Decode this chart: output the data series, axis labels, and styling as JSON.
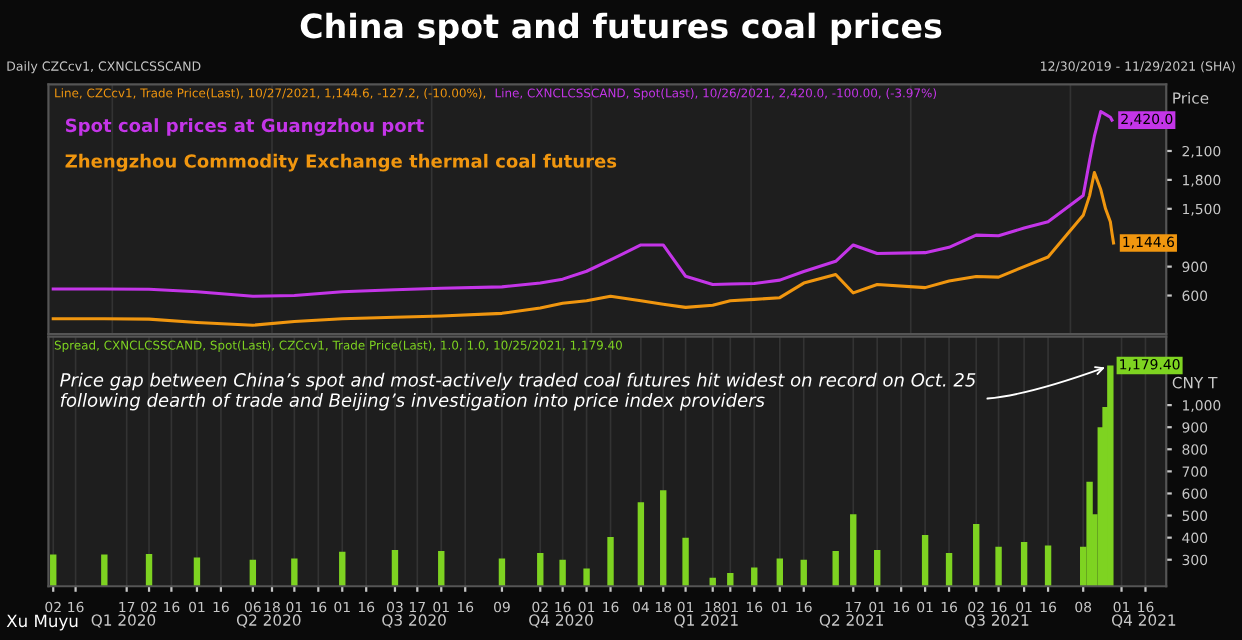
{
  "chart_data": [
    {
      "type": "line",
      "title": "China spot and futures coal prices",
      "ylabel": "Price",
      "x": [
        "2020-01-02",
        "2020-02-03",
        "2020-03-02",
        "2020-04-01",
        "2020-05-06",
        "2020-06-01",
        "2020-07-01",
        "2020-08-03",
        "2020-09-01",
        "2020-10-09",
        "2020-11-02",
        "2020-11-16",
        "2020-12-01",
        "2020-12-16",
        "2021-01-04",
        "2021-01-18",
        "2021-02-01",
        "2021-02-18",
        "2021-03-01",
        "2021-03-16",
        "2021-04-01",
        "2021-04-16",
        "2021-05-06",
        "2021-05-17",
        "2021-06-01",
        "2021-07-01",
        "2021-07-16",
        "2021-08-02",
        "2021-08-16",
        "2021-09-01",
        "2021-09-16",
        "2021-10-08",
        "2021-10-12",
        "2021-10-15",
        "2021-10-19",
        "2021-10-22",
        "2021-10-25",
        "2021-10-26",
        "2021-10-27"
      ],
      "series": [
        {
          "name": "Spot coal prices at Guangzhou port",
          "color": "#c435e8",
          "values": [
            668,
            668,
            665,
            640,
            592,
            600,
            640,
            660,
            675,
            690,
            729,
            770,
            852,
            969,
            1125,
            1125,
            800,
            715,
            720,
            725,
            760,
            850,
            955,
            1125,
            1036,
            1045,
            1100,
            1227,
            1220,
            1300,
            1365,
            1637,
            2000,
            2253,
            2510,
            2480,
            2450,
            2420,
            null
          ],
          "value_labels": [
            null,
            null,
            null,
            null,
            null,
            null,
            null,
            null,
            null,
            null,
            null,
            null,
            null,
            null,
            null,
            null,
            null,
            null,
            null,
            null,
            null,
            null,
            null,
            null,
            null,
            null,
            null,
            null,
            null,
            null,
            null,
            null,
            null,
            null,
            null,
            null,
            null,
            "2,420.0",
            null
          ]
        },
        {
          "name": "Zhengzhou Commodity Exchange thermal coal futures",
          "color": "#f0960f",
          "values": [
            360,
            360,
            355,
            320,
            292,
            330,
            360,
            375,
            387,
            415,
            470,
            520,
            545,
            592,
            545,
            510,
            477,
            500,
            545,
            560,
            578,
            729,
            818,
            627,
            715,
            682,
            750,
            797,
            791,
            900,
            1000,
            1432,
            1637,
            1877,
            1700,
            1500,
            1365,
            1250,
            1144.6
          ],
          "value_labels": [
            null,
            null,
            null,
            null,
            null,
            null,
            null,
            null,
            null,
            null,
            null,
            null,
            null,
            null,
            null,
            null,
            null,
            null,
            null,
            null,
            null,
            null,
            null,
            null,
            null,
            null,
            null,
            null,
            null,
            null,
            null,
            null,
            null,
            null,
            null,
            null,
            null,
            null,
            "1,144.6"
          ]
        }
      ],
      "xlim": [
        "2019-12-30",
        "2021-11-29"
      ],
      "ylim": [
        200,
        2790
      ],
      "yticks": [
        600,
        900,
        {
          "value": 1500,
          "label": "1,500"
        },
        {
          "value": 1800,
          "label": "1,800"
        },
        {
          "value": 2100,
          "label": "2,100"
        }
      ],
      "tick_labels": "y",
      "grid": "x",
      "legend": "top left",
      "marker": "none",
      "line_style": "solid",
      "annotations": [
        "Daily CZCcv1, CXNCLCSSCAND",
        "12/30/2019 - 11/29/2021 (SHA)",
        "Line, CZCcv1, Trade Price(Last), 10/27/2021, 1,144.6, -127.2, (-10.00%),",
        "Line, CXNCLCSSCAND, Spot(Last), 10/26/2021, 2,420.0, -100.00, (-3.97%)"
      ]
    },
    {
      "type": "bar",
      "ylabel": "CNY T",
      "x": [
        "2020-01-02",
        "2020-02-03",
        "2020-03-02",
        "2020-04-01",
        "2020-05-06",
        "2020-06-01",
        "2020-07-01",
        "2020-08-03",
        "2020-09-01",
        "2020-10-09",
        "2020-11-02",
        "2020-11-16",
        "2020-12-01",
        "2020-12-16",
        "2021-01-04",
        "2021-01-18",
        "2021-02-01",
        "2021-02-18",
        "2021-03-01",
        "2021-03-16",
        "2021-04-01",
        "2021-04-16",
        "2021-05-06",
        "2021-05-17",
        "2021-06-01",
        "2021-07-01",
        "2021-07-16",
        "2021-08-02",
        "2021-08-16",
        "2021-09-01",
        "2021-09-16",
        "2021-10-08",
        "2021-10-12",
        "2021-10-15",
        "2021-10-19",
        "2021-10-22",
        "2021-10-25"
      ],
      "series": [
        {
          "color": "#7ed321",
          "values": [
            324,
            324,
            326,
            310,
            300,
            306,
            336,
            344,
            340,
            306,
            330,
            300,
            260,
            403,
            560,
            615,
            400,
            218,
            240,
            265,
            306,
            300,
            340,
            506,
            344,
            412,
            330,
            462,
            359,
            380,
            364,
            359,
            653,
            506,
            900,
            991,
            1179.4
          ],
          "value_labels": [
            null,
            null,
            null,
            null,
            null,
            null,
            null,
            null,
            null,
            null,
            null,
            null,
            null,
            null,
            null,
            null,
            null,
            null,
            null,
            null,
            null,
            null,
            null,
            null,
            null,
            null,
            null,
            null,
            null,
            null,
            null,
            null,
            null,
            null,
            null,
            null,
            "1,179.40"
          ]
        }
      ],
      "xlim": [
        "2019-12-30",
        "2021-11-29"
      ],
      "ylim": [
        180,
        1310
      ],
      "xticks": [
        {
          "value": "2020-01-02",
          "label": "02"
        },
        {
          "value": "2020-01-16",
          "label": "16"
        },
        {
          "value": "2020-02-17",
          "label": "17"
        },
        {
          "value": "2020-03-02",
          "label": "02"
        },
        {
          "value": "2020-03-16",
          "label": "16"
        },
        {
          "value": "2020-04-01",
          "label": "01"
        },
        {
          "value": "2020-04-16",
          "label": "16"
        },
        {
          "value": "2020-05-06",
          "label": "06"
        },
        {
          "value": "2020-05-18",
          "label": "18"
        },
        {
          "value": "2020-06-01",
          "label": "01"
        },
        {
          "value": "2020-06-16",
          "label": "16"
        },
        {
          "value": "2020-07-01",
          "label": "01"
        },
        {
          "value": "2020-07-16",
          "label": "16"
        },
        {
          "value": "2020-08-03",
          "label": "03"
        },
        {
          "value": "2020-08-17",
          "label": "17"
        },
        {
          "value": "2020-09-01",
          "label": "01"
        },
        {
          "value": "2020-09-16",
          "label": "16"
        },
        {
          "value": "2020-10-09",
          "label": "09"
        },
        {
          "value": "2020-11-02",
          "label": "02"
        },
        {
          "value": "2020-11-16",
          "label": "16"
        },
        {
          "value": "2020-12-01",
          "label": "01"
        },
        {
          "value": "2020-12-16",
          "label": "16"
        },
        {
          "value": "2021-01-04",
          "label": "04"
        },
        {
          "value": "2021-01-18",
          "label": "18"
        },
        {
          "value": "2021-02-01",
          "label": "01"
        },
        {
          "value": "2021-02-18",
          "label": "18"
        },
        {
          "value": "2021-03-01",
          "label": "01"
        },
        {
          "value": "2021-03-16",
          "label": "16"
        },
        {
          "value": "2021-04-01",
          "label": "01"
        },
        {
          "value": "2021-04-16",
          "label": "16"
        },
        {
          "value": "2021-05-17",
          "label": "17"
        },
        {
          "value": "2021-06-01",
          "label": "01"
        },
        {
          "value": "2021-06-16",
          "label": "16"
        },
        {
          "value": "2021-07-01",
          "label": "01"
        },
        {
          "value": "2021-07-16",
          "label": "16"
        },
        {
          "value": "2021-08-02",
          "label": "02"
        },
        {
          "value": "2021-08-16",
          "label": "16"
        },
        {
          "value": "2021-09-01",
          "label": "01"
        },
        {
          "value": "2021-09-16",
          "label": "16"
        },
        {
          "value": "2021-10-08",
          "label": "08"
        },
        {
          "value": "2021-11-01",
          "label": "01"
        },
        {
          "value": "2021-11-16",
          "label": "16"
        }
      ],
      "x2ticks": [
        {
          "value": "2020-02-15",
          "label": "Q1 2020"
        },
        {
          "value": "2020-05-16",
          "label": "Q2 2020"
        },
        {
          "value": "2020-08-15",
          "label": "Q3 2020"
        },
        {
          "value": "2020-11-15",
          "label": "Q4 2020"
        },
        {
          "value": "2021-02-14",
          "label": "Q1 2021"
        },
        {
          "value": "2021-05-16",
          "label": "Q2 2021"
        },
        {
          "value": "2021-08-15",
          "label": "Q3 2021"
        },
        {
          "value": "2021-11-15",
          "label": "Q4 2021"
        }
      ],
      "x2lim": [
        "2019-12-30",
        "2021-11-29"
      ],
      "yticks": [
        300,
        400,
        500,
        600,
        700,
        800,
        900,
        {
          "value": 1000,
          "label": "1,000"
        }
      ],
      "grid": "x",
      "annotations": [
        "Spread, CXNCLCSSCAND, Spot(Last), CZCcv1, Trade Price(Last), 1.0, 1.0, 10/25/2021, 1,179.40",
        {
          "text": "Price gap between China’s spot and most-actively traded coal futures hit widest on record on Oct. 25\nfollowing dearth of trade and Beijing’s investigation into price index providers",
          "x": "2021-10-25",
          "y": 1179.4
        },
        "Xu Muyu"
      ]
    }
  ]
}
